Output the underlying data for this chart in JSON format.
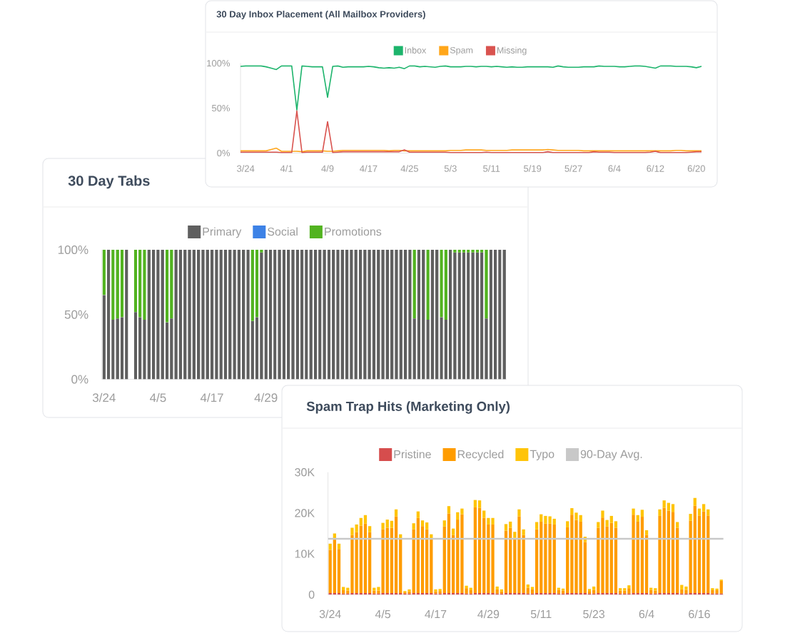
{
  "chart_data": [
    {
      "type": "line",
      "title": "30 Day Inbox Placement (All Mailbox Providers)",
      "categories": [
        null,
        "3/24",
        null,
        null,
        null,
        null,
        null,
        null,
        null,
        "4/1",
        null,
        null,
        null,
        null,
        null,
        null,
        null,
        "4/9",
        null,
        null,
        null,
        null,
        null,
        null,
        null,
        "4/17",
        null,
        null,
        null,
        null,
        null,
        null,
        null,
        "4/25",
        null,
        null,
        null,
        null,
        null,
        null,
        null,
        "5/3",
        null,
        null,
        null,
        null,
        null,
        null,
        null,
        "5/11",
        null,
        null,
        null,
        null,
        null,
        null,
        null,
        "5/19",
        null,
        null,
        null,
        null,
        null,
        null,
        null,
        "5/27",
        null,
        null,
        null,
        null,
        null,
        null,
        null,
        "6/4",
        null,
        null,
        null,
        null,
        null,
        null,
        null,
        "6/12",
        null,
        null,
        null,
        null,
        null,
        null,
        null,
        "6/20",
        null
      ],
      "series": [
        {
          "name": "Inbox",
          "color": "#1db46c",
          "values": [
            96.5,
            97,
            97,
            97,
            97,
            96,
            94.5,
            93,
            97,
            97,
            97,
            48,
            97,
            96.5,
            96,
            96,
            96,
            62,
            96.5,
            97,
            95.5,
            96,
            96,
            96,
            96,
            96.5,
            96,
            95,
            94.5,
            95,
            94.5,
            95.5,
            94,
            97,
            97,
            96,
            96.5,
            96,
            95.5,
            96.5,
            97,
            96,
            96,
            96,
            96.5,
            96.5,
            96,
            96.5,
            96.5,
            96,
            96.5,
            96,
            95.5,
            96,
            95.5,
            95.5,
            96,
            96,
            96,
            96,
            96,
            95.5,
            97,
            96,
            95.5,
            95.5,
            95.5,
            96,
            96,
            96,
            97,
            96.5,
            96.5,
            96.5,
            96,
            96,
            96.5,
            97,
            97,
            96.5,
            95.5,
            94.5,
            97,
            97,
            97,
            96.5,
            96.5,
            96.5,
            96,
            95,
            96.5
          ]
        },
        {
          "name": "Spam",
          "color": "#ffa61a",
          "values": [
            2.5,
            2.5,
            2.5,
            2.5,
            2.5,
            2.5,
            4,
            5.5,
            2,
            2,
            2,
            2,
            1.5,
            2.5,
            2.5,
            2.5,
            2.5,
            2,
            2,
            2.5,
            3,
            3,
            3,
            3,
            3,
            3,
            3,
            3,
            3,
            2.5,
            3,
            3,
            2.5,
            2.5,
            2.5,
            2.5,
            2.5,
            2.5,
            2.5,
            2.5,
            2.5,
            3,
            3,
            3,
            3.5,
            3.5,
            3.5,
            3.5,
            3,
            3,
            3,
            3,
            3,
            3.5,
            3.5,
            3.5,
            3.5,
            3.5,
            3.5,
            3.5,
            4,
            3.5,
            3,
            3,
            3,
            3,
            3,
            2.5,
            2.5,
            2.5,
            2.5,
            2.5,
            2.5,
            2.5,
            2.5,
            2.5,
            2.5,
            2.5,
            2.5,
            2.5,
            2.5,
            2.5,
            2.5,
            2.5,
            2.5,
            3,
            3,
            2.5,
            2.5,
            2.5,
            2.5
          ]
        },
        {
          "name": "Missing",
          "color": "#d9534f",
          "values": [
            1,
            1,
            1,
            1,
            1,
            1,
            1,
            1,
            0.5,
            0.5,
            0.5,
            47,
            0.5,
            1,
            1,
            1,
            1,
            35,
            0.5,
            1,
            1.5,
            1.5,
            1.5,
            1.5,
            1.5,
            1.5,
            1.5,
            1.5,
            1.5,
            1.5,
            1.5,
            1.5,
            3.5,
            1,
            1,
            1,
            1,
            1,
            1,
            1,
            1,
            0.5,
            0.5,
            0.5,
            0.5,
            0.5,
            0.5,
            0.5,
            1,
            0.5,
            0.5,
            0.5,
            0.5,
            0.5,
            0.5,
            0.5,
            0.5,
            0.5,
            0.5,
            0.5,
            1.5,
            0.5,
            0.5,
            0.5,
            0.5,
            0.5,
            0.5,
            0.5,
            0.5,
            1.5,
            1,
            1,
            1,
            0.5,
            0.5,
            0.5,
            0.5,
            0.5,
            0.5,
            0.5,
            1,
            2,
            0.5,
            0.5,
            0.5,
            0.5,
            0.5,
            0.5,
            1,
            1.5,
            1.5
          ]
        }
      ],
      "ylim": [
        0,
        100
      ],
      "yticks": [
        {
          "value": 0,
          "label": "0%"
        },
        {
          "value": 50,
          "label": "50%"
        },
        {
          "value": 100,
          "label": "100%"
        }
      ],
      "legend": "top"
    },
    {
      "type": "bar",
      "stacked": true,
      "title": "30 Day Tabs",
      "categories": [
        "3/24",
        null,
        null,
        null,
        null,
        null,
        null,
        null,
        null,
        null,
        null,
        null,
        "4/5",
        null,
        null,
        null,
        null,
        null,
        null,
        null,
        null,
        null,
        null,
        null,
        "4/17",
        null,
        null,
        null,
        null,
        null,
        null,
        null,
        null,
        null,
        null,
        null,
        "4/29",
        null,
        null,
        null,
        null,
        null,
        null,
        null,
        null,
        null,
        null,
        null,
        null,
        null,
        null,
        null,
        null,
        null,
        null,
        null,
        null,
        null,
        null,
        null,
        null,
        null,
        null,
        null,
        null,
        null,
        null,
        null,
        null,
        null,
        null,
        null,
        null,
        null,
        null,
        null,
        null,
        null,
        null,
        null,
        null,
        null,
        null,
        null,
        null,
        null,
        null,
        null,
        null,
        null
      ],
      "series": [
        {
          "name": "Primary",
          "color": "#5f5f5f",
          "values": [
            65,
            100,
            46,
            47,
            48,
            100,
            null,
            52,
            48,
            46,
            100,
            100,
            100,
            100,
            44,
            47,
            100,
            100,
            100,
            100,
            100,
            100,
            100,
            100,
            100,
            100,
            100,
            100,
            100,
            100,
            100,
            100,
            100,
            45,
            48,
            98,
            100,
            100,
            100,
            100,
            100,
            100,
            100,
            100,
            100,
            100,
            100,
            100,
            100,
            100,
            100,
            100,
            100,
            100,
            100,
            100,
            100,
            100,
            100,
            100,
            100,
            100,
            100,
            100,
            100,
            100,
            100,
            100,
            100,
            47,
            100,
            100,
            46,
            100,
            100,
            48,
            46,
            100,
            98,
            98,
            98,
            98,
            98,
            98,
            98,
            47,
            100,
            100,
            100,
            100
          ]
        },
        {
          "name": "Social",
          "color": "#3d82e6",
          "values": [
            0,
            0,
            0,
            0,
            0,
            0,
            null,
            0,
            0,
            0,
            0,
            0,
            0,
            0,
            0,
            0,
            0,
            0,
            0,
            0,
            0,
            0,
            0,
            0,
            0,
            0,
            0,
            0,
            0,
            0,
            0,
            0,
            0,
            0,
            0,
            0,
            0,
            0,
            0,
            0,
            0,
            0,
            0,
            0,
            0,
            0,
            0,
            0,
            0,
            0,
            0,
            0,
            0,
            0,
            0,
            0,
            0,
            0,
            0,
            0,
            0,
            0,
            0,
            0,
            0,
            0,
            0,
            0,
            0,
            0,
            0,
            0,
            0,
            0,
            0,
            0,
            0,
            0,
            0,
            0,
            0,
            0,
            0,
            0,
            0,
            0,
            0,
            0,
            0,
            0
          ]
        },
        {
          "name": "Promotions",
          "color": "#52b320",
          "values": [
            35,
            0,
            54,
            53,
            52,
            0,
            null,
            48,
            52,
            54,
            0,
            0,
            0,
            0,
            56,
            53,
            0,
            0,
            0,
            0,
            0,
            0,
            0,
            0,
            0,
            0,
            0,
            0,
            0,
            0,
            0,
            0,
            0,
            55,
            52,
            2,
            0,
            0,
            0,
            0,
            0,
            0,
            0,
            0,
            0,
            0,
            0,
            0,
            0,
            0,
            0,
            0,
            0,
            0,
            0,
            0,
            0,
            0,
            0,
            0,
            0,
            0,
            0,
            0,
            0,
            0,
            0,
            0,
            0,
            53,
            0,
            0,
            54,
            0,
            0,
            52,
            54,
            0,
            2,
            2,
            2,
            2,
            2,
            2,
            2,
            53,
            0,
            0,
            0,
            0
          ]
        }
      ],
      "ylim": [
        0,
        100
      ],
      "yticks": [
        {
          "value": 0,
          "label": "0%"
        },
        {
          "value": 50,
          "label": "50%"
        },
        {
          "value": 100,
          "label": "100%"
        }
      ],
      "legend": "top"
    },
    {
      "type": "bar",
      "stacked": true,
      "title": "Spam Trap Hits (Marketing Only)",
      "categories": [
        "3/24",
        null,
        null,
        null,
        null,
        null,
        null,
        null,
        null,
        null,
        null,
        null,
        "4/5",
        null,
        null,
        null,
        null,
        null,
        null,
        null,
        null,
        null,
        null,
        null,
        "4/17",
        null,
        null,
        null,
        null,
        null,
        null,
        null,
        null,
        null,
        null,
        null,
        "4/29",
        null,
        null,
        null,
        null,
        null,
        null,
        null,
        null,
        null,
        null,
        null,
        "5/11",
        null,
        null,
        null,
        null,
        null,
        null,
        null,
        null,
        null,
        null,
        null,
        "5/23",
        null,
        null,
        null,
        null,
        null,
        null,
        null,
        null,
        null,
        null,
        null,
        "6/4",
        null,
        null,
        null,
        null,
        null,
        null,
        null,
        null,
        null,
        null,
        null,
        "6/16",
        null,
        null,
        null,
        null,
        null
      ],
      "series": [
        {
          "name": "Pristine",
          "color": "#d64d4d",
          "values": [
            400,
            400,
            400,
            300,
            300,
            400,
            400,
            400,
            400,
            400,
            300,
            300,
            400,
            400,
            400,
            400,
            400,
            300,
            300,
            400,
            400,
            400,
            400,
            400,
            300,
            300,
            400,
            400,
            400,
            400,
            400,
            300,
            300,
            400,
            400,
            400,
            400,
            400,
            300,
            300,
            400,
            400,
            400,
            400,
            400,
            300,
            300,
            400,
            400,
            400,
            400,
            400,
            300,
            300,
            400,
            400,
            400,
            400,
            400,
            300,
            300,
            400,
            400,
            400,
            400,
            400,
            300,
            300,
            300,
            400,
            400,
            400,
            400,
            300,
            300,
            400,
            400,
            400,
            400,
            400,
            300,
            300,
            400,
            400,
            400,
            400,
            400,
            300,
            300,
            300
          ]
        },
        {
          "name": "Recycled",
          "color": "#ff9c00",
          "values": [
            10600,
            13100,
            10800,
            800,
            700,
            14200,
            14900,
            16500,
            17000,
            14900,
            700,
            700,
            15600,
            16000,
            16000,
            18800,
            13200,
            300,
            500,
            15600,
            18400,
            16400,
            15600,
            13200,
            500,
            600,
            16300,
            19500,
            14200,
            18000,
            19300,
            1300,
            800,
            21000,
            20900,
            18400,
            16800,
            16800,
            1000,
            500,
            15300,
            16000,
            13500,
            18800,
            14200,
            1400,
            1000,
            15600,
            17500,
            17000,
            17000,
            16800,
            900,
            700,
            16100,
            19200,
            17900,
            17500,
            12500,
            600,
            900,
            16000,
            18500,
            16300,
            17200,
            16000,
            700,
            700,
            1300,
            19200,
            17500,
            18700,
            14200,
            900,
            700,
            18900,
            20900,
            20200,
            19900,
            16000,
            1000,
            900,
            17700,
            21400,
            19000,
            20000,
            19000,
            800,
            800,
            3100
          ]
        },
        {
          "name": "Typo",
          "color": "#ffc409",
          "values": [
            1500,
            1500,
            1300,
            800,
            700,
            1800,
            1900,
            1900,
            2100,
            1500,
            700,
            900,
            1600,
            2000,
            1700,
            1700,
            1200,
            300,
            500,
            1500,
            1600,
            1400,
            1700,
            1200,
            500,
            500,
            1500,
            1800,
            1600,
            1800,
            1400,
            600,
            600,
            1800,
            1800,
            1800,
            1600,
            1600,
            700,
            500,
            1600,
            1500,
            1500,
            1700,
            1400,
            800,
            600,
            1800,
            1800,
            1900,
            1800,
            1400,
            500,
            500,
            1500,
            1600,
            1800,
            1600,
            1300,
            500,
            800,
            1400,
            1700,
            1600,
            1700,
            1600,
            600,
            600,
            700,
            1500,
            1600,
            1700,
            1200,
            500,
            600,
            1600,
            1800,
            1900,
            1900,
            1400,
            1100,
            800,
            1700,
            1900,
            1700,
            1800,
            1500,
            500,
            400,
            300
          ]
        }
      ],
      "ylim": [
        0,
        30000
      ],
      "yticks": [
        0,
        {
          "value": 10000,
          "label": "10K"
        },
        {
          "value": 20000,
          "label": "20K"
        },
        {
          "value": 30000,
          "label": "30K"
        }
      ],
      "ref_lines": [
        {
          "axis": "y",
          "value": 13700,
          "label": "90-Day Avg.",
          "color": "#c8c8c8"
        }
      ],
      "legend": "top"
    }
  ]
}
